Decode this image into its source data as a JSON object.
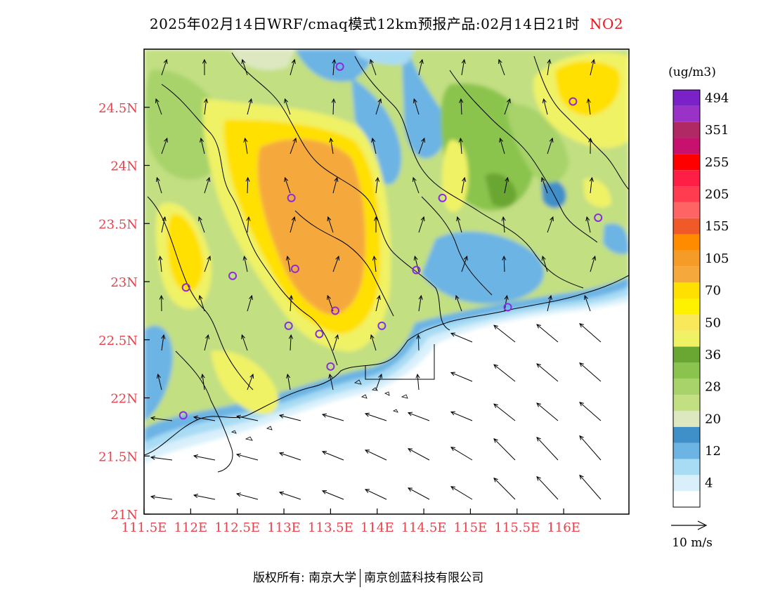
{
  "title": {
    "text": "2025年02月14日WRF/cmaq模式12km预报产品:02月14日21时",
    "species": "NO2"
  },
  "colors": {
    "lat_labels": "#e8414a",
    "lon_labels": "#e8414a",
    "frame": "#000000",
    "boundaries": "#000000",
    "wind_arrows": "#000000",
    "station_markers": "#8a2be2"
  },
  "axes": {
    "lat_ticks": [
      "21N",
      "21.5N",
      "22N",
      "22.5N",
      "23N",
      "23.5N",
      "24N",
      "24.5N"
    ],
    "lon_ticks": [
      "111.5E",
      "112E",
      "112.5E",
      "113E",
      "113.5E",
      "114E",
      "114.5E",
      "115E",
      "115.5E",
      "116E"
    ]
  },
  "colorbar": {
    "unit": "(ug/m3)",
    "bins": [
      {
        "color": "#ffffff"
      },
      {
        "color": "#d9f0fb",
        "label": "4"
      },
      {
        "color": "#a8dcf4"
      },
      {
        "color": "#6cb4e4",
        "label": "12"
      },
      {
        "color": "#3f8fc8"
      },
      {
        "color": "#dde8c0",
        "label": "20"
      },
      {
        "color": "#c2df82"
      },
      {
        "color": "#a7d36a",
        "label": "28"
      },
      {
        "color": "#8ac44e"
      },
      {
        "color": "#6aa632",
        "label": "36"
      },
      {
        "color": "#f0f266"
      },
      {
        "color": "#f8e85a",
        "label": "50"
      },
      {
        "color": "#fff200"
      },
      {
        "color": "#ffe000",
        "label": "70"
      },
      {
        "color": "#f5a93c"
      },
      {
        "color": "#f59b28",
        "label": "105"
      },
      {
        "color": "#ff8c00"
      },
      {
        "color": "#f05a28",
        "label": "155"
      },
      {
        "color": "#ff6464"
      },
      {
        "color": "#ff3c50",
        "label": "205"
      },
      {
        "color": "#ff1e46"
      },
      {
        "color": "#ff0000",
        "label": "255"
      },
      {
        "color": "#c8106e"
      },
      {
        "color": "#b02864",
        "label": "351"
      },
      {
        "color": "#9a32c8"
      },
      {
        "color": "#7a22c8",
        "label": "494"
      }
    ]
  },
  "wind_legend": {
    "label": "10 m/s"
  },
  "footer": {
    "left": "版权所有: 南京大学",
    "right": "南京创蓝科技有限公司"
  },
  "map": {
    "stations": [
      [
        113.12,
        23.11
      ],
      [
        113.55,
        22.75
      ],
      [
        113.38,
        22.55
      ],
      [
        113.05,
        22.62
      ],
      [
        113.5,
        22.27
      ],
      [
        112.45,
        23.05
      ],
      [
        111.95,
        22.95
      ],
      [
        111.92,
        21.85
      ],
      [
        114.05,
        22.62
      ],
      [
        114.42,
        23.1
      ],
      [
        114.7,
        23.72
      ],
      [
        115.4,
        22.78
      ],
      [
        116.1,
        24.55
      ],
      [
        116.37,
        23.55
      ],
      [
        113.08,
        23.72
      ],
      [
        113.6,
        24.85
      ]
    ]
  }
}
